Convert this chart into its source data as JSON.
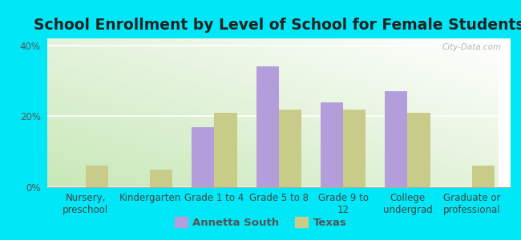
{
  "title": "School Enrollment by Level of School for Female Students",
  "categories": [
    "Nursery,\npreschool",
    "Kindergarten",
    "Grade 1 to 4",
    "Grade 5 to 8",
    "Grade 9 to\n12",
    "College\nundergrad",
    "Graduate or\nprofessional"
  ],
  "annetta_south": [
    0,
    0,
    17,
    34,
    24,
    27,
    0
  ],
  "texas": [
    6,
    5,
    21,
    22,
    22,
    21,
    6
  ],
  "annetta_color": "#b39ddb",
  "texas_color": "#c8cc88",
  "background_color": "#00e8f8",
  "plot_bg_topleft": "#d8efd4",
  "plot_bg_topright": "#ffffff",
  "plot_bg_bottomleft": "#c8e8c0",
  "plot_bg_bottomright": "#e8f8e8",
  "ylim": [
    0,
    42
  ],
  "yticks": [
    0,
    20,
    40
  ],
  "ytick_labels": [
    "0%",
    "20%",
    "40%"
  ],
  "bar_width": 0.35,
  "legend_labels": [
    "Annetta South",
    "Texas"
  ],
  "title_fontsize": 13.5,
  "tick_fontsize": 8.5,
  "watermark": "City-Data.com"
}
